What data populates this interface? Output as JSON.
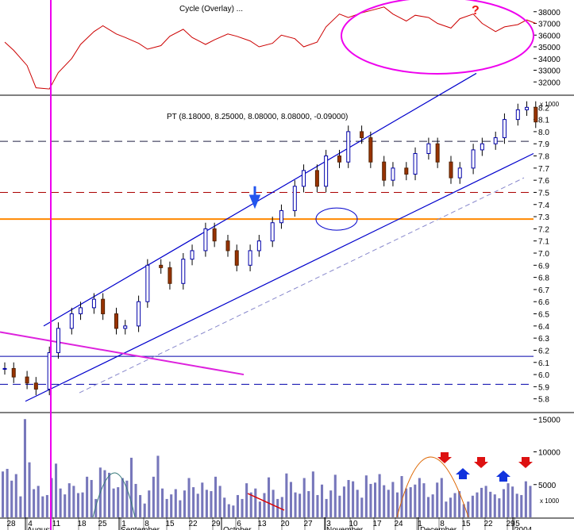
{
  "chart_data": [
    {
      "type": "line",
      "panel": "indicator",
      "title": "Cycle (Overlay) ...",
      "series": [
        {
          "x": [
            "2003-07-25",
            "2003-07-29",
            "2003-08-01",
            "2003-08-05",
            "2003-08-08",
            "2003-08-12",
            "2003-08-15",
            "2003-08-19",
            "2003-08-22",
            "2003-08-26",
            "2003-08-29",
            "2003-09-02",
            "2003-09-05",
            "2003-09-09",
            "2003-09-12",
            "2003-09-16",
            "2003-09-19",
            "2003-09-23",
            "2003-09-26",
            "2003-09-30",
            "2003-10-03",
            "2003-10-07",
            "2003-10-10",
            "2003-10-14",
            "2003-10-17",
            "2003-10-21",
            "2003-10-24",
            "2003-10-28",
            "2003-10-31",
            "2003-11-04",
            "2003-11-07",
            "2003-11-11",
            "2003-11-14",
            "2003-11-18",
            "2003-11-21",
            "2003-11-25",
            "2003-11-28",
            "2003-12-02",
            "2003-12-05",
            "2003-12-09",
            "2003-12-12",
            "2003-12-16",
            "2003-12-19",
            "2003-12-23",
            "2003-12-26",
            "2003-12-30",
            "2004-01-02",
            "2004-01-06",
            "2004-01-08"
          ],
          "values": [
            35400,
            34700,
            33400,
            31500,
            31400,
            32800,
            34000,
            35200,
            36300,
            36800,
            36100,
            35800,
            35300,
            34800,
            35100,
            35900,
            36500,
            35800,
            35200,
            35600,
            36100,
            35900,
            35500,
            35000,
            35300,
            36000,
            35700,
            35000,
            35400,
            36700,
            37800,
            37500,
            37900,
            38100,
            38400,
            37800,
            37200,
            37700,
            37500,
            37000,
            36600,
            37400,
            37800,
            37000,
            36300,
            36700,
            36900,
            37300,
            37000
          ]
        }
      ],
      "ylim": [
        31000,
        39000
      ],
      "yticks": [
        32000,
        33000,
        34000,
        35000,
        36000,
        37000,
        38000
      ]
    },
    {
      "type": "candlestick",
      "panel": "price",
      "annotation": "PT (8.18000, 8.25000, 8.08000, 8.08000, -0.09000)",
      "scale_label": "x 1000",
      "x": [
        "2003-07-25",
        "2003-07-29",
        "2003-08-01",
        "2003-08-05",
        "2003-08-08",
        "2003-08-12",
        "2003-08-15",
        "2003-08-19",
        "2003-08-22",
        "2003-08-26",
        "2003-08-29",
        "2003-09-02",
        "2003-09-05",
        "2003-09-09",
        "2003-09-12",
        "2003-09-16",
        "2003-09-19",
        "2003-09-23",
        "2003-09-26",
        "2003-09-30",
        "2003-10-03",
        "2003-10-07",
        "2003-10-10",
        "2003-10-14",
        "2003-10-17",
        "2003-10-21",
        "2003-10-24",
        "2003-10-28",
        "2003-10-31",
        "2003-11-04",
        "2003-11-07",
        "2003-11-11",
        "2003-11-14",
        "2003-11-18",
        "2003-11-21",
        "2003-11-25",
        "2003-11-28",
        "2003-12-02",
        "2003-12-05",
        "2003-12-09",
        "2003-12-12",
        "2003-12-16",
        "2003-12-19",
        "2003-12-23",
        "2003-12-26",
        "2003-12-30",
        "2004-01-02",
        "2004-01-06",
        "2004-01-08"
      ],
      "close": [
        6.05,
        5.98,
        5.93,
        5.88,
        6.18,
        6.38,
        6.5,
        6.55,
        6.62,
        6.5,
        6.38,
        6.4,
        6.6,
        6.9,
        6.88,
        6.75,
        6.95,
        7.02,
        7.2,
        7.1,
        7.02,
        6.9,
        7.02,
        7.1,
        7.25,
        7.35,
        7.55,
        7.68,
        7.55,
        7.8,
        7.75,
        8.0,
        7.95,
        7.75,
        7.6,
        7.7,
        7.65,
        7.82,
        7.9,
        7.75,
        7.62,
        7.7,
        7.85,
        7.9,
        7.95,
        8.1,
        8.18,
        8.2,
        8.08
      ],
      "ylim": [
        5.7,
        8.3
      ],
      "yticks": [
        5.8,
        5.9,
        6.0,
        6.1,
        6.2,
        6.3,
        6.4,
        6.5,
        6.6,
        6.7,
        6.8,
        6.9,
        7.0,
        7.1,
        7.2,
        7.3,
        7.4,
        7.5,
        7.6,
        7.7,
        7.8,
        7.9,
        8.0,
        8.1,
        8.2
      ],
      "ytick_labels": [
        "5.8",
        "5.9",
        "6.0",
        "6.1",
        "6.2",
        "6.3",
        "6.4",
        "6.5",
        "6.6",
        "6.7",
        "6.8",
        "6.9",
        "7.0",
        "7.1",
        "7.2",
        "7.3",
        "7.4",
        "7.5",
        "7.6",
        "7.7",
        "7.8",
        "7.9",
        "8.0",
        "8.1",
        "8.2"
      ],
      "horizontal_lines": [
        {
          "y": 7.92,
          "color": "#222244",
          "style": "dashed"
        },
        {
          "y": 7.5,
          "color": "#aa0000",
          "style": "dashed"
        },
        {
          "y": 7.28,
          "color": "#ff8800",
          "style": "solid"
        },
        {
          "y": 6.15,
          "color": "#0000aa",
          "style": "solid"
        },
        {
          "y": 5.92,
          "color": "#0000aa",
          "style": "dashed"
        }
      ]
    },
    {
      "type": "bar",
      "panel": "volume",
      "scale_label": "x 1000",
      "ylim": [
        0,
        16000
      ],
      "yticks": [
        5000,
        10000,
        15000
      ],
      "ytick_labels": [
        "5000",
        "10000",
        "15000"
      ],
      "values": [
        7000,
        7400,
        5600,
        6600,
        3200,
        15000,
        8400,
        4300,
        4800,
        3200,
        3400,
        6000,
        8200,
        4400,
        3500,
        5200,
        4800,
        3700,
        3800,
        6200,
        5700,
        2800,
        7600,
        7200,
        6800,
        4400,
        4600,
        6000,
        5600,
        9100,
        5100,
        3400,
        2100,
        4100,
        6200,
        9400,
        4400,
        2800,
        3500,
        4300,
        2600,
        4100,
        6000,
        4600,
        3600,
        5300,
        4200,
        4000,
        6200,
        4800,
        3000,
        2000,
        1800,
        3400,
        2800,
        5200,
        3800,
        4400,
        2400,
        3700,
        6100,
        4200,
        2800,
        3100,
        6700,
        5400,
        3800,
        3600,
        6000,
        4000,
        7000,
        3400,
        5000,
        2800,
        4100,
        6500,
        3300,
        4700,
        5700,
        5500,
        4200,
        3000,
        6400,
        5100,
        5300,
        6600,
        4900,
        4200,
        5400,
        3800,
        6300,
        4400,
        4600,
        5000,
        6000,
        5200,
        3100,
        3500,
        5300,
        6000,
        2400,
        3000,
        3700,
        4000,
        2000,
        2400,
        3300,
        3800,
        4500,
        4800,
        3900,
        3500,
        2900,
        4300,
        5200,
        4700,
        3600,
        3400,
        5500,
        4800
      ],
      "annotations": []
    }
  ],
  "x_axis": {
    "day_labels": [
      "28",
      "4",
      "11",
      "18",
      "25",
      "1",
      "8",
      "15",
      "22",
      "29",
      "6",
      "13",
      "20",
      "27",
      "3",
      "10",
      "17",
      "24",
      "1",
      "8",
      "15",
      "22",
      "29",
      "5"
    ],
    "month_labels": [
      "August",
      "September",
      "October",
      "November",
      "December",
      "2004"
    ]
  },
  "marks": {
    "question": "?"
  }
}
